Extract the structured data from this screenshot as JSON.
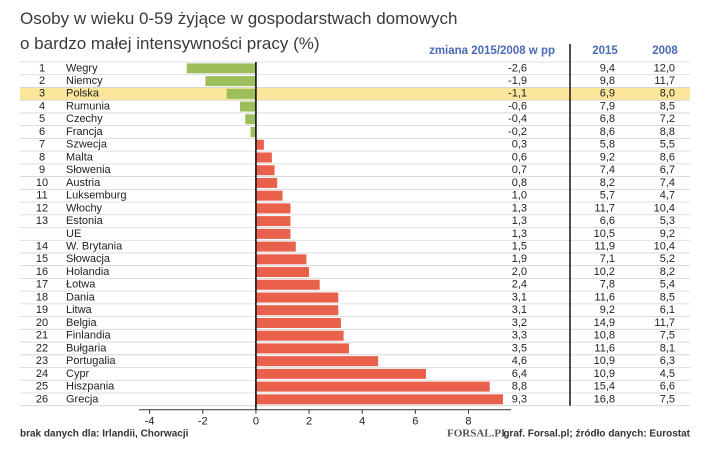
{
  "chart_data": {
    "type": "bar",
    "orientation": "horizontal",
    "title": [
      "Osoby w wieku 0-59 żyjące w gospodarstwach domowych",
      "o bardzo małej intensywności pracy (%)"
    ],
    "ranks": [
      1,
      2,
      3,
      4,
      5,
      6,
      7,
      8,
      9,
      10,
      11,
      12,
      13,
      null,
      14,
      15,
      16,
      17,
      18,
      19,
      20,
      21,
      22,
      23,
      24,
      25,
      26
    ],
    "categories": [
      "Wegry",
      "Niemcy",
      "Polska",
      "Rumunia",
      "Czechy",
      "Francja",
      "Szwecja",
      "Malta",
      "Słowenia",
      "Austria",
      "Luksemburg",
      "Włochy",
      "Estonia",
      "UE",
      "W. Brytania",
      "Słowacja",
      "Holandia",
      "Łotwa",
      "Dania",
      "Litwa",
      "Belgia",
      "Finlandia",
      "Bułgaria",
      "Portugalia",
      "Cypr",
      "Hiszpania",
      "Grecja"
    ],
    "series_name": "zmiana 2015/2008 w pp",
    "values": [
      -2.6,
      -1.9,
      -1.1,
      -0.6,
      -0.4,
      -0.2,
      0.3,
      0.6,
      0.7,
      0.8,
      1.0,
      1.3,
      1.3,
      1.3,
      1.5,
      1.9,
      2.0,
      2.4,
      3.1,
      3.1,
      3.2,
      3.3,
      3.5,
      4.6,
      6.4,
      8.8,
      9.3
    ],
    "value_labels": [
      "-2,6",
      "-1,9",
      "-1,1",
      "-0,6",
      "-0,4",
      "-0,2",
      "0,3",
      "0,6",
      "0,7",
      "0,8",
      "1,0",
      "1,3",
      "1,3",
      "1,3",
      "1,5",
      "1,9",
      "2,0",
      "2,4",
      "3,1",
      "3,1",
      "3,2",
      "3,3",
      "3,5",
      "4,6",
      "6,4",
      "8,8",
      "9,3"
    ],
    "colors": {
      "negative": "#9cbf5c",
      "positive": "#e9604b"
    },
    "highlight": "Polska",
    "highlight_color": "#fbe69c",
    "columns": [
      {
        "name": "2015",
        "values": [
          9.4,
          9.8,
          6.9,
          7.9,
          6.8,
          8.6,
          5.8,
          9.2,
          7.4,
          8.2,
          5.7,
          11.7,
          6.6,
          10.5,
          11.9,
          7.1,
          10.2,
          7.8,
          11.6,
          9.2,
          14.9,
          10.8,
          11.6,
          10.9,
          10.9,
          15.4,
          16.8
        ],
        "value_labels": [
          "9,4",
          "9,8",
          "6,9",
          "7,9",
          "6,8",
          "8,6",
          "5,8",
          "9,2",
          "7,4",
          "8,2",
          "5,7",
          "11,7",
          "6,6",
          "10,5",
          "11,9",
          "7,1",
          "10,2",
          "7,8",
          "11,6",
          "9,2",
          "14,9",
          "10,8",
          "11,6",
          "10,9",
          "10,9",
          "15,4",
          "16,8"
        ]
      },
      {
        "name": "2008",
        "values": [
          12.0,
          11.7,
          8.0,
          8.5,
          7.2,
          8.8,
          5.5,
          8.6,
          6.7,
          7.4,
          4.7,
          10.4,
          5.3,
          9.2,
          10.4,
          5.2,
          8.2,
          5.4,
          8.5,
          6.1,
          11.7,
          7.5,
          8.1,
          6.3,
          4.5,
          6.6,
          7.5
        ],
        "value_labels": [
          "12,0",
          "11,7",
          "8,0",
          "8,5",
          "7,2",
          "8,8",
          "5,5",
          "8,6",
          "6,7",
          "7,4",
          "4,7",
          "10,4",
          "5,3",
          "9,2",
          "10,4",
          "5,2",
          "8,2",
          "5,4",
          "8,5",
          "6,1",
          "11,7",
          "7,5",
          "8,1",
          "6,3",
          "4,5",
          "6,6",
          "7,5"
        ]
      }
    ],
    "xlim": [
      -4.4,
      9.6
    ],
    "xticks": [
      -4,
      -2,
      0,
      2,
      4,
      6,
      8
    ],
    "footnote": "brak danych dla: Irlandii, Chorwacji",
    "logo": "FORSAL.PL",
    "source": "graf. Forsal.pl; źródło danych: Eurostat"
  }
}
